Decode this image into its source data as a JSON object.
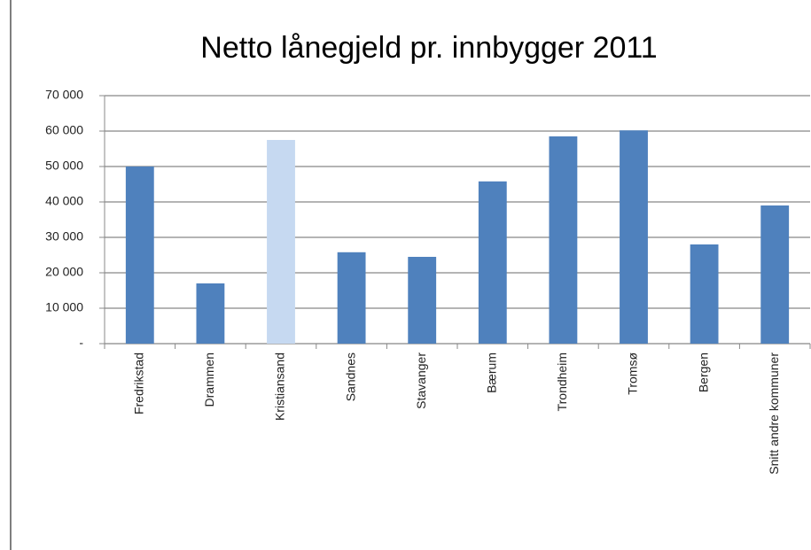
{
  "chart_data": {
    "type": "bar",
    "title": "Netto lånegjeld pr. innbygger 2011",
    "categories": [
      "Fredrikstad",
      "Drammen",
      "Kristiansand",
      "Sandnes",
      "Stavanger",
      "Bærum",
      "Trondheim",
      "Tromsø",
      "Bergen",
      "Snitt andre kommuner"
    ],
    "values": [
      50000,
      17000,
      57500,
      25800,
      24500,
      45800,
      58500,
      60200,
      28000,
      39000
    ],
    "colors": [
      "#4f81bd",
      "#4f81bd",
      "#c6d9f1",
      "#4f81bd",
      "#4f81bd",
      "#4f81bd",
      "#4f81bd",
      "#4f81bd",
      "#4f81bd",
      "#4f81bd"
    ],
    "ylim": [
      0,
      70000
    ],
    "yticks": [
      {
        "value": 0,
        "label": "-"
      },
      {
        "value": 10000,
        "label": "10 000"
      },
      {
        "value": 20000,
        "label": "20 000"
      },
      {
        "value": 30000,
        "label": "30 000"
      },
      {
        "value": 40000,
        "label": "40 000"
      },
      {
        "value": 50000,
        "label": "50 000"
      },
      {
        "value": 60000,
        "label": "60 000"
      },
      {
        "value": 70000,
        "label": "70 000"
      }
    ],
    "grid": true
  }
}
